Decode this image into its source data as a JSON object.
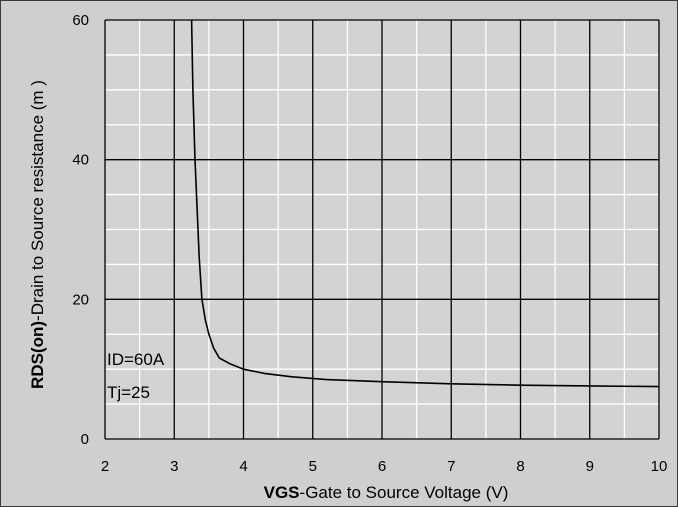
{
  "chart_data": {
    "type": "line",
    "xlabel_bold": "VGS",
    "xlabel_rest": "-Gate to Source Voltage (V)",
    "ylabel_bold": "RDS(on)",
    "ylabel_rest": "-Drain to Source resistance (m  )",
    "xlim": [
      2,
      10
    ],
    "ylim": [
      0,
      60
    ],
    "x_ticks": [
      2,
      3,
      4,
      5,
      6,
      7,
      8,
      9,
      10
    ],
    "y_ticks": [
      0,
      20,
      40,
      60
    ],
    "major_grid": true,
    "minor_grid": true,
    "annotations": [
      "ID=60A",
      "Tj=25"
    ],
    "series": [
      {
        "x": [
          3.25,
          3.27,
          3.3,
          3.33,
          3.36,
          3.4,
          3.45,
          3.5,
          3.57,
          3.65,
          3.8,
          4.0,
          4.3,
          4.7,
          5.2,
          6.0,
          7.0,
          8.0,
          9.0,
          10.0
        ],
        "y": [
          60,
          50,
          40,
          33,
          26,
          20,
          17,
          15,
          13,
          11.6,
          10.8,
          10.0,
          9.4,
          8.9,
          8.5,
          8.2,
          7.9,
          7.7,
          7.6,
          7.5
        ]
      }
    ]
  }
}
